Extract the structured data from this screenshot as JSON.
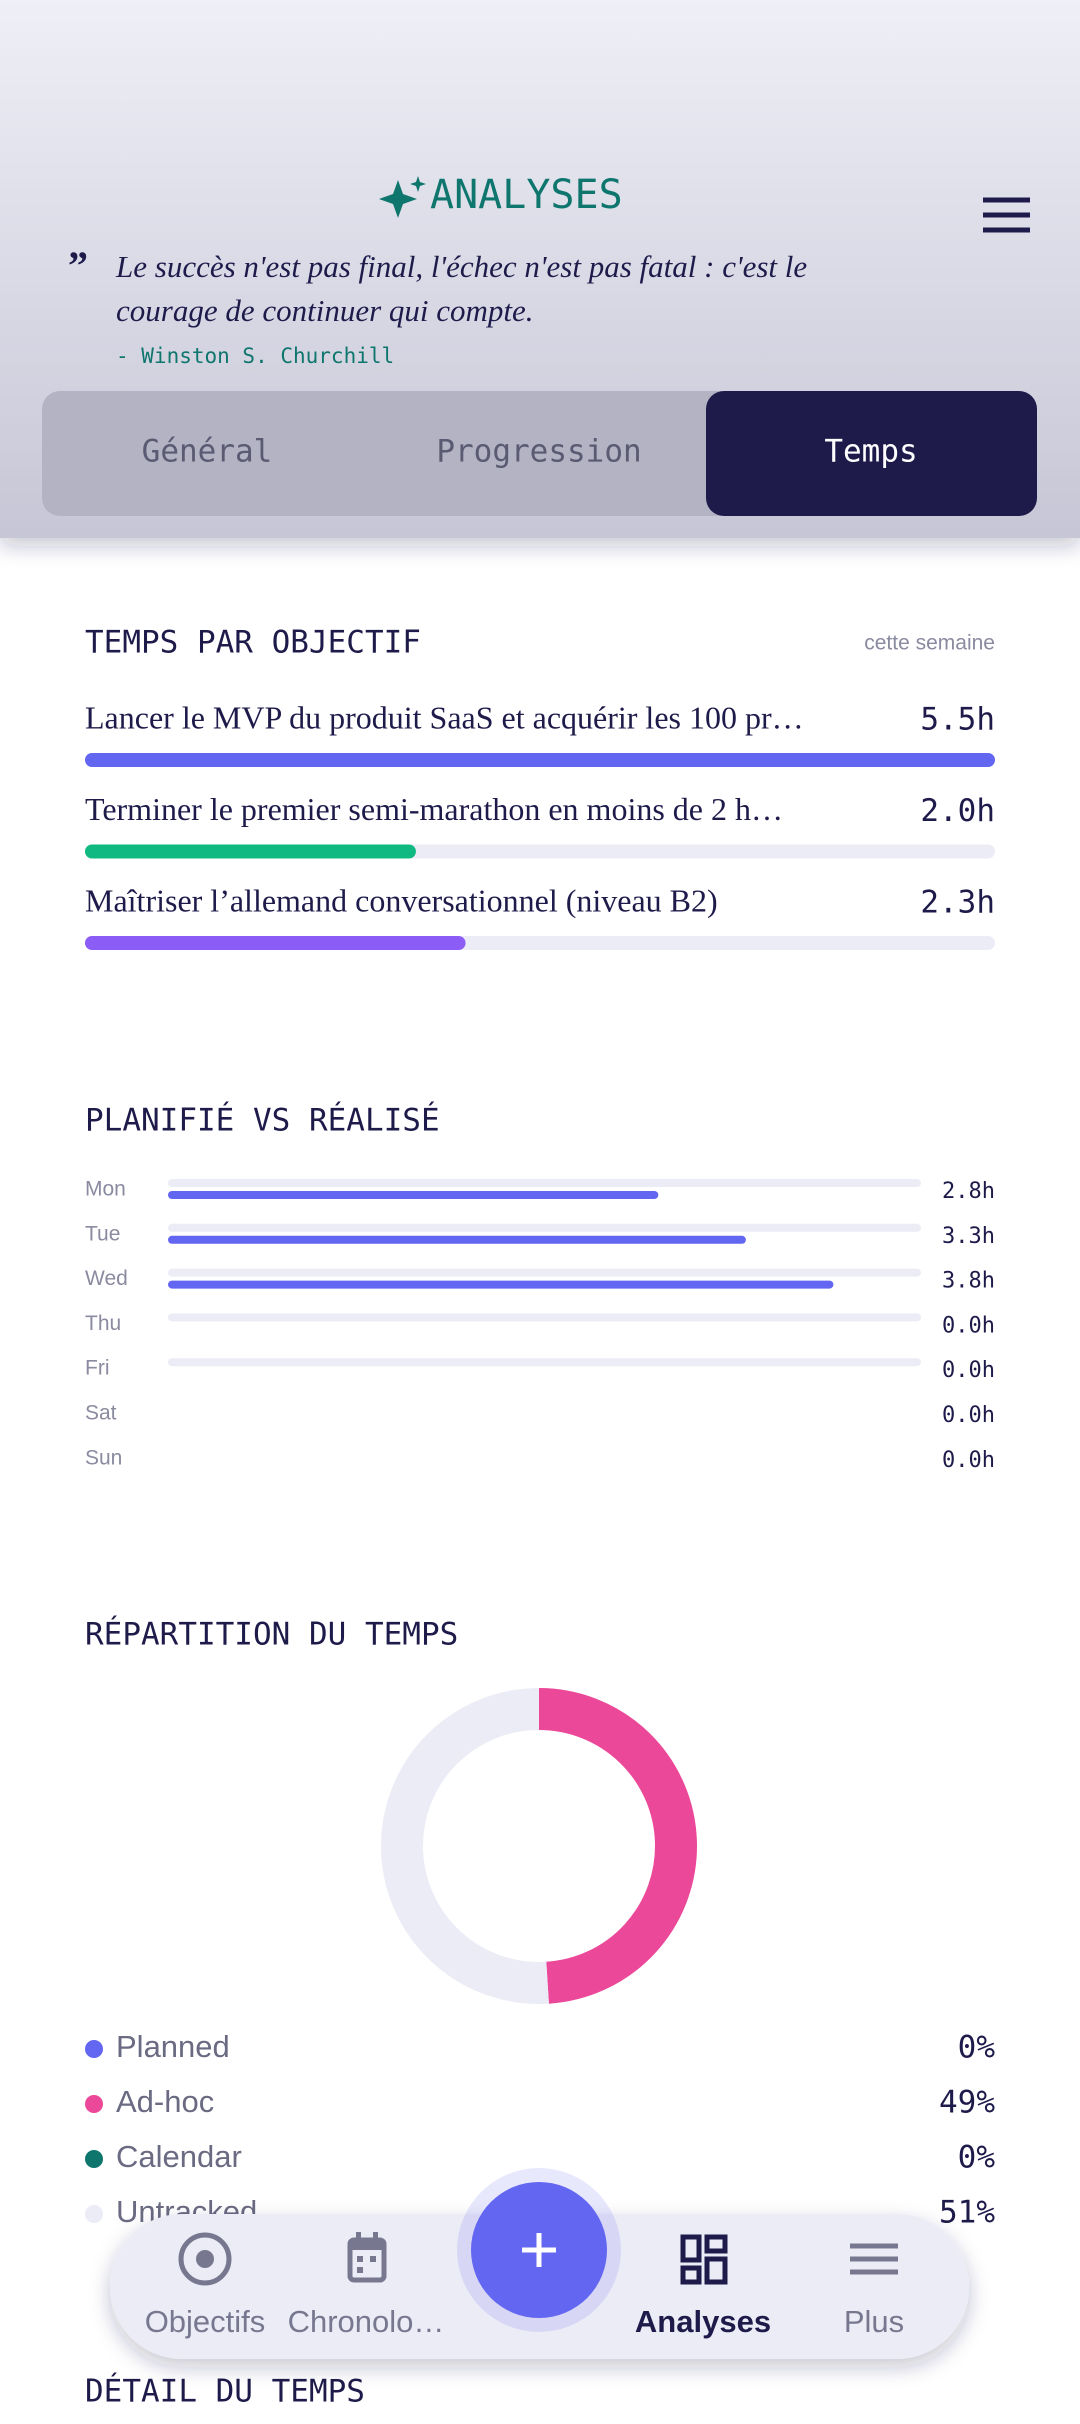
{
  "header": {
    "title": "ANALYSES",
    "quote": "Le succès n'est pas final, l'échec n'est pas fatal : c'est le",
    "quote_line2": "courage de continuer qui compte.",
    "author": "- Winston S. Churchill"
  },
  "tabs": [
    "Général",
    "Progression",
    "Temps"
  ],
  "chart_data": [
    {
      "type": "progress",
      "title": "TEMPS PAR OBJECTIF",
      "subtitle": "cette semaine",
      "categories": [
        "Lancer le MVP du produit SaaS et acquérir les 100 pr…",
        "Terminer le premier semi-marathon en moins de 2 h…",
        "Maîtriser l’allemand conversationnel (niveau B2)"
      ],
      "values": [
        5.5,
        2.0,
        2.3
      ],
      "value_labels": [
        "5.5h",
        "2.0h",
        "2.3h"
      ],
      "colors": [
        "#6366f1",
        "#10b981",
        "#8b5cf6"
      ]
    },
    {
      "type": "hbar",
      "title": "PLANIFIÉ VS RÉALISÉ",
      "categories": [
        "Mon",
        "Tue",
        "Wed",
        "Thu",
        "Fri",
        "Sat",
        "Sun"
      ],
      "values": [
        2.8,
        3.3,
        3.8,
        0,
        0,
        0,
        0
      ],
      "value_labels": [
        "2.8h",
        "3.3h",
        "3.8h",
        "0.0h",
        "0.0h",
        "0.0h",
        "0.0h"
      ],
      "color": "#6366f1",
      "xlim": [
        0,
        4.3
      ]
    },
    {
      "type": "donut",
      "title": "RÉPARTITION DU TEMPS",
      "categories": [
        "Planned",
        "Ad-hoc",
        "Calendar",
        "Untracked"
      ],
      "values": [
        0,
        49,
        0,
        51
      ],
      "value_labels": [
        "0%",
        "49%",
        "0%",
        "51%"
      ],
      "colors": [
        "#6366f1",
        "#ec4899",
        "#0f766e",
        "#ececf6"
      ]
    }
  ],
  "next_section": "DÉTAIL DU TEMPS",
  "nav": [
    "Objectifs",
    "Chronolo…",
    "Analyses",
    "Plus"
  ]
}
